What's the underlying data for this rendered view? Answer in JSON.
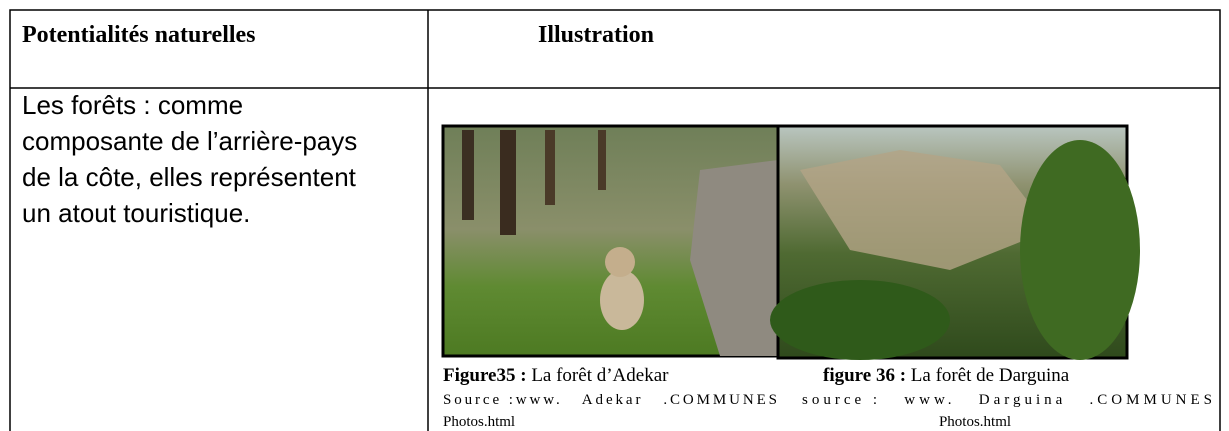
{
  "header": {
    "col1": "Potentialités naturelles",
    "col2": "Illustration"
  },
  "body": {
    "lines": [
      "Les forêts : comme",
      "composante de l’arrière-pays",
      "de la côte, elles représentent",
      "un atout touristique."
    ]
  },
  "figures": [
    {
      "label": "Figure35 :",
      "caption": "La forêt d’Adekar",
      "source": "Source :www.   Adekar   .COMMUNES",
      "source2": "Photos.html"
    },
    {
      "label": "figure 36 :",
      "caption": "La forêt de Darguina",
      "source": "source :   www.   Darguina   .COMMUNES",
      "source2": "Photos.html"
    }
  ]
}
